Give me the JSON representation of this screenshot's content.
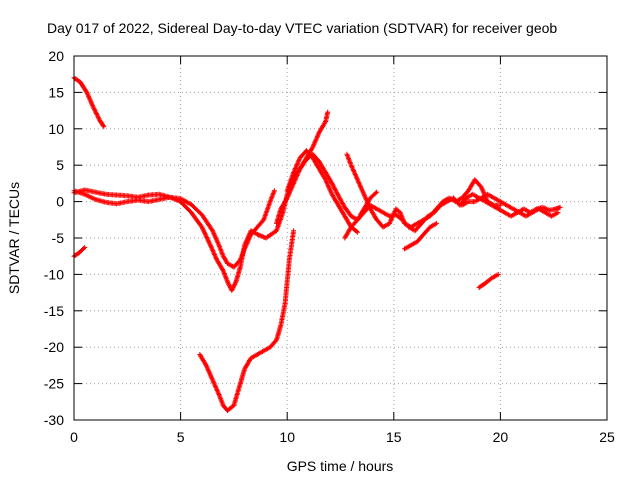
{
  "chart_data": {
    "type": "scatter",
    "title": "Day 017 of 2022, Sidereal Day-to-day VTEC variation (SDTVAR) for receiver geob",
    "xlabel": "GPS time / hours",
    "ylabel": "SDTVAR / TECUs",
    "xlim": [
      0,
      25
    ],
    "ylim": [
      -30,
      20
    ],
    "xticks": [
      0,
      5,
      10,
      15,
      20,
      25
    ],
    "yticks": [
      -30,
      -25,
      -20,
      -15,
      -10,
      -5,
      0,
      5,
      10,
      15,
      20
    ],
    "grid": true,
    "marker": "plus",
    "color": "#ff0000",
    "series": [
      {
        "segments": [
          {
            "points": [
              [
                0.0,
                17.0
              ],
              [
                0.3,
                16.4
              ],
              [
                0.6,
                15.0
              ],
              [
                0.9,
                13.0
              ],
              [
                1.2,
                11.2
              ],
              [
                1.4,
                10.3
              ]
            ]
          },
          {
            "points": [
              [
                0.0,
                -7.5
              ],
              [
                0.25,
                -7.0
              ],
              [
                0.5,
                -6.3
              ]
            ]
          },
          {
            "points": [
              [
                0.0,
                1.5
              ],
              [
                0.5,
                1.0
              ],
              [
                1.0,
                0.3
              ],
              [
                1.5,
                -0.1
              ],
              [
                2.0,
                -0.3
              ],
              [
                2.5,
                0.0
              ],
              [
                3.0,
                0.2
              ],
              [
                3.5,
                0.0
              ],
              [
                4.0,
                0.3
              ],
              [
                4.5,
                0.6
              ],
              [
                5.0,
                0.4
              ],
              [
                5.5,
                -0.4
              ],
              [
                6.0,
                -1.8
              ],
              [
                6.5,
                -4.0
              ],
              [
                6.8,
                -6.0
              ],
              [
                7.0,
                -7.5
              ],
              [
                7.2,
                -8.5
              ],
              [
                7.5,
                -9.0
              ],
              [
                7.8,
                -8.0
              ],
              [
                8.0,
                -6.5
              ],
              [
                8.3,
                -4.5
              ],
              [
                8.6,
                -3.5
              ],
              [
                8.9,
                -2.5
              ],
              [
                9.2,
                0.0
              ],
              [
                9.4,
                1.5
              ]
            ]
          },
          {
            "points": [
              [
                0.0,
                1.2
              ],
              [
                0.5,
                1.6
              ],
              [
                1.0,
                1.3
              ],
              [
                1.5,
                1.0
              ],
              [
                2.0,
                0.9
              ],
              [
                2.5,
                0.8
              ],
              [
                3.0,
                0.6
              ],
              [
                3.5,
                0.9
              ],
              [
                4.0,
                1.0
              ],
              [
                4.5,
                0.6
              ],
              [
                5.0,
                0.0
              ],
              [
                5.5,
                -1.5
              ],
              [
                6.0,
                -3.5
              ],
              [
                6.4,
                -6.0
              ],
              [
                6.7,
                -8.0
              ],
              [
                7.0,
                -9.5
              ],
              [
                7.2,
                -11.0
              ],
              [
                7.4,
                -12.2
              ],
              [
                7.6,
                -11.0
              ],
              [
                7.8,
                -9.0
              ],
              [
                8.0,
                -6.0
              ],
              [
                8.3,
                -4.0
              ],
              [
                8.6,
                -4.5
              ],
              [
                9.0,
                -5.0
              ],
              [
                9.5,
                -4.0
              ],
              [
                9.8,
                -1.5
              ],
              [
                10.0,
                1.0
              ],
              [
                10.3,
                3.5
              ],
              [
                10.6,
                4.5
              ],
              [
                10.9,
                5.8
              ],
              [
                11.2,
                6.5
              ],
              [
                11.5,
                5.5
              ],
              [
                11.8,
                4.0
              ],
              [
                12.1,
                2.5
              ],
              [
                12.4,
                0.8
              ],
              [
                12.7,
                -0.8
              ],
              [
                13.0,
                -2.0
              ],
              [
                13.3,
                -2.5
              ],
              [
                13.6,
                -1.5
              ],
              [
                13.9,
                -0.5
              ],
              [
                14.2,
                -1.0
              ],
              [
                14.5,
                -1.5
              ],
              [
                14.8,
                -2.0
              ],
              [
                15.1,
                -1.8
              ],
              [
                15.4,
                -2.5
              ],
              [
                15.7,
                -3.5
              ],
              [
                16.0,
                -4.0
              ],
              [
                16.3,
                -3.0
              ],
              [
                16.6,
                -2.0
              ],
              [
                16.9,
                -1.5
              ],
              [
                17.2,
                -0.5
              ],
              [
                17.5,
                0.0
              ],
              [
                17.8,
                0.5
              ],
              [
                18.1,
                -0.5
              ],
              [
                18.4,
                0.5
              ],
              [
                18.7,
                1.0
              ],
              [
                19.0,
                0.5
              ],
              [
                19.3,
                0.0
              ],
              [
                19.6,
                -0.5
              ],
              [
                19.9,
                -1.0
              ],
              [
                20.2,
                -1.5
              ],
              [
                20.5,
                -2.0
              ],
              [
                20.8,
                -1.5
              ],
              [
                21.1,
                -1.0
              ],
              [
                21.4,
                -1.5
              ],
              [
                21.7,
                -1.0
              ],
              [
                22.0,
                -0.8
              ],
              [
                22.3,
                -1.2
              ],
              [
                22.6,
                -1.0
              ],
              [
                22.8,
                -0.8
              ]
            ]
          },
          {
            "points": [
              [
                9.5,
                -3.0
              ],
              [
                9.7,
                -1.0
              ],
              [
                10.0,
                0.5
              ],
              [
                10.3,
                2.5
              ],
              [
                10.6,
                4.5
              ],
              [
                10.9,
                6.0
              ],
              [
                11.2,
                7.5
              ],
              [
                11.5,
                9.5
              ],
              [
                11.8,
                11.0
              ],
              [
                11.9,
                12.3
              ]
            ]
          },
          {
            "points": [
              [
                10.0,
                1.5
              ],
              [
                10.3,
                4.0
              ],
              [
                10.6,
                6.0
              ],
              [
                10.9,
                7.0
              ],
              [
                11.2,
                6.0
              ],
              [
                11.5,
                4.5
              ],
              [
                11.8,
                3.0
              ],
              [
                12.1,
                1.0
              ],
              [
                12.4,
                -0.5
              ],
              [
                12.7,
                -2.0
              ],
              [
                13.0,
                -3.5
              ],
              [
                13.3,
                -4.2
              ]
            ]
          },
          {
            "points": [
              [
                12.7,
                -5.0
              ],
              [
                13.0,
                -3.5
              ],
              [
                13.3,
                -2.5
              ],
              [
                13.6,
                -1.0
              ],
              [
                13.9,
                0.5
              ],
              [
                14.2,
                1.3
              ]
            ]
          },
          {
            "points": [
              [
                12.8,
                6.5
              ],
              [
                13.0,
                5.0
              ],
              [
                13.3,
                3.0
              ],
              [
                13.6,
                1.0
              ],
              [
                13.9,
                -1.0
              ],
              [
                14.2,
                -2.5
              ],
              [
                14.5,
                -3.5
              ],
              [
                14.8,
                -3.0
              ],
              [
                15.1,
                -1.0
              ],
              [
                15.3,
                -1.5
              ],
              [
                15.5,
                -3.0
              ],
              [
                15.8,
                -3.5
              ],
              [
                16.1,
                -3.0
              ],
              [
                16.4,
                -2.5
              ],
              [
                16.7,
                -2.0
              ],
              [
                17.0,
                -1.0
              ],
              [
                17.3,
                0.0
              ],
              [
                17.6,
                0.5
              ],
              [
                17.9,
                0.0
              ],
              [
                18.2,
                0.5
              ],
              [
                18.5,
                1.5
              ],
              [
                18.8,
                3.0
              ],
              [
                19.1,
                2.0
              ],
              [
                19.4,
                0.0
              ],
              [
                19.7,
                -0.5
              ],
              [
                20.0,
                -0.5
              ]
            ]
          },
          {
            "points": [
              [
                15.5,
                -6.5
              ],
              [
                15.8,
                -6.0
              ],
              [
                16.1,
                -5.5
              ],
              [
                16.4,
                -4.5
              ],
              [
                16.7,
                -3.5
              ],
              [
                17.0,
                -3.0
              ]
            ]
          },
          {
            "points": [
              [
                19.0,
                -11.8
              ],
              [
                19.3,
                -11.2
              ],
              [
                19.6,
                -10.5
              ],
              [
                19.9,
                -10.0
              ]
            ]
          },
          {
            "points": [
              [
                18.2,
                -0.5
              ],
              [
                18.5,
                0.0
              ],
              [
                18.8,
                0.0
              ],
              [
                19.1,
                0.5
              ],
              [
                19.4,
                1.0
              ],
              [
                19.7,
                0.5
              ],
              [
                20.0,
                0.0
              ],
              [
                20.3,
                -0.5
              ],
              [
                20.6,
                -1.0
              ],
              [
                20.9,
                -1.5
              ],
              [
                21.2,
                -2.0
              ],
              [
                21.5,
                -1.5
              ],
              [
                21.8,
                -1.0
              ],
              [
                22.1,
                -1.5
              ],
              [
                22.4,
                -2.0
              ],
              [
                22.7,
                -1.5
              ]
            ]
          },
          {
            "points": [
              [
                5.9,
                -21.0
              ],
              [
                6.2,
                -22.5
              ],
              [
                6.5,
                -24.5
              ],
              [
                6.8,
                -26.5
              ],
              [
                7.0,
                -28.0
              ],
              [
                7.2,
                -28.7
              ],
              [
                7.5,
                -28.0
              ],
              [
                7.8,
                -25.0
              ],
              [
                8.0,
                -23.0
              ],
              [
                8.3,
                -21.5
              ],
              [
                8.6,
                -21.0
              ],
              [
                8.9,
                -20.5
              ],
              [
                9.2,
                -20.0
              ],
              [
                9.5,
                -19.0
              ],
              [
                9.7,
                -17.0
              ],
              [
                9.9,
                -14.0
              ],
              [
                10.0,
                -11.0
              ],
              [
                10.1,
                -8.0
              ],
              [
                10.2,
                -6.0
              ],
              [
                10.3,
                -4.0
              ]
            ]
          }
        ]
      }
    ]
  }
}
